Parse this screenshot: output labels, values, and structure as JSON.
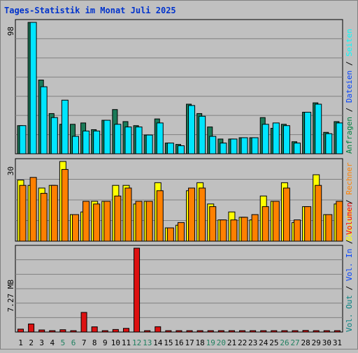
{
  "chart_data": [
    {
      "type": "bar",
      "title": "Tages-Statistik im Monat Juli 2025",
      "ymax_label": "98",
      "legend": [
        {
          "name": "Anfragen",
          "color": "#008040"
        },
        {
          "name": "Dateien",
          "color": "#0040ff"
        },
        {
          "name": "Seiten",
          "color": "#00ffff"
        }
      ],
      "ylim": [
        0,
        98
      ],
      "categories": [
        "1",
        "2",
        "3",
        "4",
        "5",
        "6",
        "7",
        "8",
        "9",
        "10",
        "11",
        "12",
        "13",
        "14",
        "15",
        "16",
        "17",
        "18",
        "19",
        "20",
        "21",
        "22",
        "23",
        "24",
        "25",
        "26",
        "27",
        "28",
        "29",
        "30",
        "31"
      ],
      "series": [
        {
          "name": "Anfragen",
          "color": "#1a7a58",
          "values": [
            21,
            98,
            55,
            30,
            22,
            22,
            23,
            18,
            25,
            33,
            24,
            21,
            14,
            26,
            8,
            7,
            37,
            30,
            20,
            11,
            11,
            12,
            12,
            27,
            19,
            22,
            9,
            31,
            38,
            16,
            24
          ]
        },
        {
          "name": "Dateien",
          "color": "#2233cc",
          "values": [
            0,
            0,
            0,
            0,
            0,
            0,
            0,
            0,
            0,
            0,
            0,
            0,
            0,
            0,
            0,
            0,
            0,
            0,
            0,
            0,
            0,
            0,
            0,
            0,
            0,
            0,
            0,
            0,
            0,
            0,
            0
          ]
        },
        {
          "name": "Seiten",
          "color": "#00e5ff",
          "values": [
            21,
            98,
            50,
            27,
            40,
            13,
            17,
            17,
            25,
            22,
            20,
            20,
            14,
            23,
            8,
            6,
            36,
            28,
            13,
            8,
            11,
            12,
            12,
            22,
            23,
            21,
            8,
            31,
            37,
            15,
            23
          ]
        }
      ]
    },
    {
      "type": "bar",
      "ymax_label": "30",
      "legend": [
        {
          "name": "Besuche",
          "color": "#ffff00"
        },
        {
          "name": "Rechner",
          "color": "#ff8000"
        }
      ],
      "ylim": [
        0,
        30
      ],
      "categories": [
        "1",
        "2",
        "3",
        "4",
        "5",
        "6",
        "7",
        "8",
        "9",
        "10",
        "11",
        "12",
        "13",
        "14",
        "15",
        "16",
        "17",
        "18",
        "19",
        "20",
        "21",
        "22",
        "23",
        "24",
        "25",
        "26",
        "27",
        "28",
        "29",
        "30",
        "31"
      ],
      "series": [
        {
          "name": "Besuche",
          "color": "#ffff00",
          "values": [
            23,
            21,
            20,
            21,
            30,
            10,
            11,
            15,
            15,
            21,
            21,
            14,
            15,
            22,
            5,
            6,
            19,
            22,
            14,
            8,
            11,
            9,
            8,
            17,
            15,
            22,
            7,
            13,
            25,
            10,
            14
          ]
        },
        {
          "name": "Rechner",
          "color": "#ff8000",
          "values": [
            21,
            24,
            18,
            21,
            27,
            10,
            15,
            14,
            15,
            17,
            20,
            15,
            15,
            19,
            5,
            7,
            20,
            20,
            13,
            8,
            8,
            9,
            10,
            13,
            15,
            20,
            8,
            13,
            21,
            10,
            15
          ]
        }
      ]
    },
    {
      "type": "bar",
      "ymax_label": "7.27 MB",
      "legend": [
        {
          "name": "Vol. Out",
          "color": "#008080"
        },
        {
          "name": "Vol. In",
          "color": "#0040ff"
        },
        {
          "name": "Volumen",
          "color": "#ff0000"
        }
      ],
      "ylim": [
        0,
        7.27
      ],
      "categories": [
        "1",
        "2",
        "3",
        "4",
        "5",
        "6",
        "7",
        "8",
        "9",
        "10",
        "11",
        "12",
        "13",
        "14",
        "15",
        "16",
        "17",
        "18",
        "19",
        "20",
        "21",
        "22",
        "23",
        "24",
        "25",
        "26",
        "27",
        "28",
        "29",
        "30",
        "31"
      ],
      "series": [
        {
          "name": "Volumen",
          "color": "#dd1111",
          "values": [
            0.25,
            0.7,
            0.18,
            0.08,
            0.2,
            0.08,
            1.7,
            0.45,
            0.08,
            0.22,
            0.32,
            7.27,
            0.06,
            0.46,
            0.06,
            0.06,
            0.06,
            0.06,
            0.06,
            0.06,
            0.06,
            0.06,
            0.06,
            0.06,
            0.06,
            0.06,
            0.06,
            0.14,
            0.06,
            0.06,
            0.06
          ]
        }
      ]
    }
  ],
  "xaxis": {
    "labels": [
      "1",
      "2",
      "3",
      "4",
      "5",
      "6",
      "7",
      "8",
      "9",
      "10",
      "11",
      "12",
      "13",
      "14",
      "15",
      "16",
      "17",
      "18",
      "19",
      "20",
      "21",
      "22",
      "23",
      "24",
      "25",
      "26",
      "27",
      "28",
      "29",
      "30",
      "31"
    ],
    "weekend_color": "#208060",
    "normal_color": "#000000",
    "weekend": [
      5,
      6,
      12,
      13,
      19,
      20,
      26,
      27
    ]
  },
  "colors": {
    "background": "#c0c0c0",
    "title": "#0000ff",
    "separator": "#000000"
  }
}
